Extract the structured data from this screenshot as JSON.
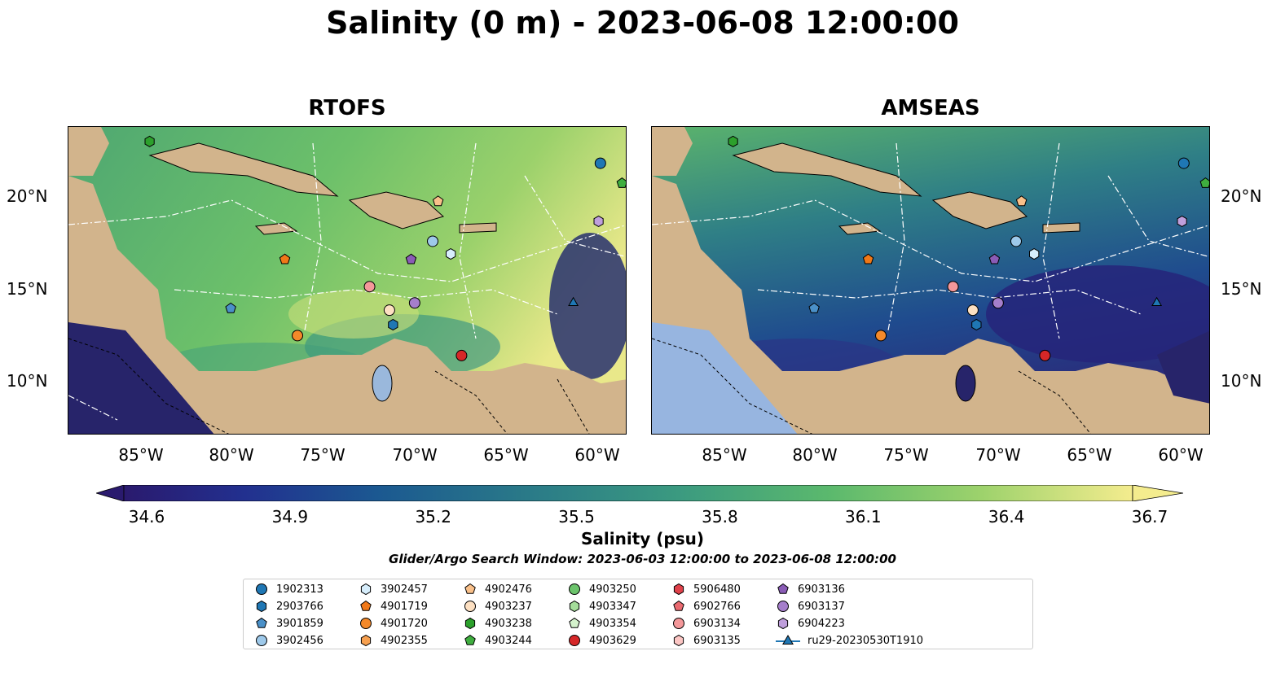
{
  "title": "Salinity (0 m) - 2023-06-08 12:00:00",
  "panels": [
    {
      "title": "RTOFS"
    },
    {
      "title": "AMSEAS"
    }
  ],
  "lon_labels": [
    "85°W",
    "80°W",
    "75°W",
    "70°W",
    "65°W",
    "60°W"
  ],
  "lat_labels": [
    "20°N",
    "15°N",
    "10°N"
  ],
  "colorbar": {
    "ticks": [
      "34.6",
      "34.9",
      "35.2",
      "35.5",
      "35.8",
      "36.1",
      "36.4",
      "36.7"
    ],
    "label": "Salinity (psu)",
    "colormap": "haline",
    "min_color": "#2a1a6e",
    "max_color": "#f4ec8e"
  },
  "search_window": "Glider/Argo Search Window: 2023-06-03 12:00:00 to 2023-06-08 12:00:00",
  "legend": [
    {
      "label": "1902313",
      "marker": "circle",
      "color": "#1f77b4"
    },
    {
      "label": "2903766",
      "marker": "hexagon",
      "color": "#1f77b4"
    },
    {
      "label": "3901859",
      "marker": "pentagon",
      "color": "#4a90c8"
    },
    {
      "label": "3902456",
      "marker": "circle",
      "color": "#9ec9ea"
    },
    {
      "label": "3902457",
      "marker": "hexagon",
      "color": "#d7eefc"
    },
    {
      "label": "4901719",
      "marker": "pentagon",
      "color": "#f07818"
    },
    {
      "label": "4901720",
      "marker": "circle",
      "color": "#f4892a"
    },
    {
      "label": "4902355",
      "marker": "hexagon",
      "color": "#f7a04f"
    },
    {
      "label": "4902476",
      "marker": "pentagon",
      "color": "#f9c08a"
    },
    {
      "label": "4903237",
      "marker": "circle",
      "color": "#fde0c2"
    },
    {
      "label": "4903238",
      "marker": "hexagon",
      "color": "#2ca02c"
    },
    {
      "label": "4903244",
      "marker": "pentagon",
      "color": "#3fae3f"
    },
    {
      "label": "4903250",
      "marker": "circle",
      "color": "#6cc46c"
    },
    {
      "label": "4903347",
      "marker": "hexagon",
      "color": "#a4dc9a"
    },
    {
      "label": "4903354",
      "marker": "pentagon",
      "color": "#d4f2cc"
    },
    {
      "label": "4903629",
      "marker": "circle",
      "color": "#d62728"
    },
    {
      "label": "5906480",
      "marker": "hexagon",
      "color": "#e0414a"
    },
    {
      "label": "6902766",
      "marker": "pentagon",
      "color": "#ea6a70"
    },
    {
      "label": "6903134",
      "marker": "circle",
      "color": "#f4989a"
    },
    {
      "label": "6903135",
      "marker": "hexagon",
      "color": "#fcc6c4"
    },
    {
      "label": "6903136",
      "marker": "pentagon",
      "color": "#8a5cb6"
    },
    {
      "label": "6903137",
      "marker": "circle",
      "color": "#a57ecb"
    },
    {
      "label": "6904223",
      "marker": "hexagon",
      "color": "#bf9fdc"
    },
    {
      "label": "ru29-20230530T1910",
      "marker": "triangle-line",
      "color": "#1f77b4"
    }
  ],
  "stations": [
    {
      "id": "1902313",
      "lon": -59.5,
      "lat": 22.0
    },
    {
      "id": "2903766",
      "lon": -71.0,
      "lat": 13.1
    },
    {
      "id": "3901859",
      "lon": -80.0,
      "lat": 14.0
    },
    {
      "id": "3902456",
      "lon": -68.8,
      "lat": 17.7
    },
    {
      "id": "3902457",
      "lon": -67.8,
      "lat": 17.0
    },
    {
      "id": "4901719",
      "lon": -77.0,
      "lat": 16.7
    },
    {
      "id": "4901720",
      "lon": -76.3,
      "lat": 12.5
    },
    {
      "id": "4902476",
      "lon": -68.5,
      "lat": 19.9
    },
    {
      "id": "4903237",
      "lon": -71.2,
      "lat": 13.9
    },
    {
      "id": "4903238",
      "lon": -84.5,
      "lat": 23.2
    },
    {
      "id": "4903244",
      "lon": -58.3,
      "lat": 20.9
    },
    {
      "id": "4903629",
      "lon": -67.2,
      "lat": 11.4
    },
    {
      "id": "6903134",
      "lon": -72.3,
      "lat": 15.2
    },
    {
      "id": "6903136",
      "lon": -70.0,
      "lat": 16.7
    },
    {
      "id": "6903137",
      "lon": -69.8,
      "lat": 14.3
    },
    {
      "id": "6904223",
      "lon": -59.6,
      "lat": 18.8
    },
    {
      "id": "ru29-20230530T1910",
      "lon": -61.0,
      "lat": 14.3
    }
  ]
}
